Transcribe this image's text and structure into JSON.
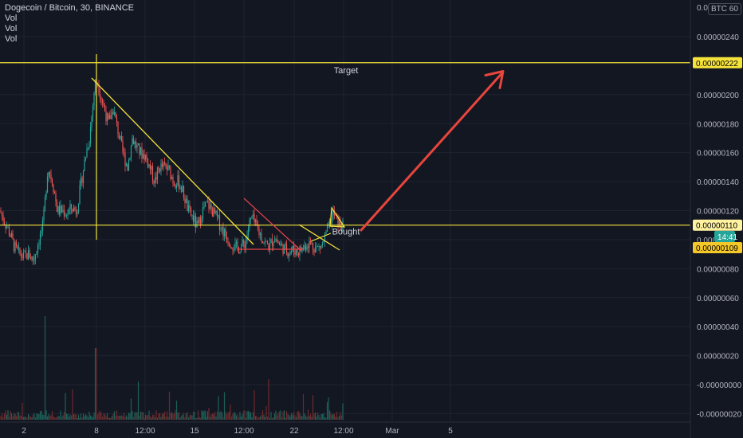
{
  "header": {
    "symbol_title": "Dogecoin / Bitcoin, 30, BINANCE",
    "volume_lines": [
      "Vol",
      "Vol",
      "Vol"
    ],
    "currency_badge": "BTC",
    "currency_badge_prefix": "0.0",
    "currency_badge_suffix": "60"
  },
  "chart_data": {
    "type": "candlestick",
    "title": "Dogecoin / Bitcoin, 30, BINANCE",
    "xlabel": "",
    "ylabel": "",
    "x_tick_labels": [
      "2",
      "8",
      "12:00",
      "15",
      "12:00",
      "22",
      "12:00",
      "Mar",
      "5"
    ],
    "y_tick_values": [
      2.4e-06,
      2e-06,
      1.8e-06,
      1.6e-06,
      1.4e-06,
      1.2e-06,
      1e-06,
      8e-07,
      6e-07,
      4e-07,
      2e-07,
      0.0,
      -2e-07
    ],
    "y_tick_labels": [
      "0.00000240",
      "0.00000200",
      "0.00000180",
      "0.00000160",
      "0.00000140",
      "0.00000120",
      "0.000001",
      "0.00000080",
      "0.00000060",
      "0.00000040",
      "0.00000020",
      "-0.00000000",
      "-0.00000020"
    ],
    "ylim": [
      -2.2e-07,
      2.94e-06
    ],
    "price_path": [
      [
        0,
        1.2e-06
      ],
      [
        6,
        1.12e-06
      ],
      [
        12,
        1.05e-06
      ],
      [
        18,
        9.5e-07
      ],
      [
        24,
        9e-07
      ],
      [
        30,
        8.8e-07
      ],
      [
        36,
        9e-07
      ],
      [
        42,
        8.6e-07
      ],
      [
        48,
        9.8e-07
      ],
      [
        54,
        1.1e-06
      ],
      [
        60,
        1.5e-06
      ],
      [
        66,
        1.4e-06
      ],
      [
        72,
        1.2e-06
      ],
      [
        78,
        1.2e-06
      ],
      [
        84,
        1.18e-06
      ],
      [
        90,
        1.22e-06
      ],
      [
        96,
        1.2e-06
      ],
      [
        102,
        1.4e-06
      ],
      [
        108,
        1.6e-06
      ],
      [
        112,
        1.7e-06
      ],
      [
        116,
        1.9e-06
      ],
      [
        119,
        2.08e-06
      ],
      [
        122,
        2.1e-06
      ],
      [
        126,
        2e-06
      ],
      [
        130,
        1.92e-06
      ],
      [
        136,
        1.8e-06
      ],
      [
        142,
        1.9e-06
      ],
      [
        148,
        1.75e-06
      ],
      [
        154,
        1.6e-06
      ],
      [
        160,
        1.5e-06
      ],
      [
        166,
        1.7e-06
      ],
      [
        170,
        1.65e-06
      ],
      [
        176,
        1.6e-06
      ],
      [
        182,
        1.58e-06
      ],
      [
        188,
        1.5e-06
      ],
      [
        194,
        1.4e-06
      ],
      [
        200,
        1.5e-06
      ],
      [
        206,
        1.5e-06
      ],
      [
        212,
        1.48e-06
      ],
      [
        218,
        1.4e-06
      ],
      [
        224,
        1.4e-06
      ],
      [
        230,
        1.32e-06
      ],
      [
        236,
        1.2e-06
      ],
      [
        242,
        1.15e-06
      ],
      [
        248,
        1.08e-06
      ],
      [
        254,
        1.2e-06
      ],
      [
        260,
        1.25e-06
      ],
      [
        266,
        1.2e-06
      ],
      [
        272,
        1.15e-06
      ],
      [
        278,
        1.08e-06
      ],
      [
        284,
        1.02e-06
      ],
      [
        290,
        9.8e-07
      ],
      [
        296,
        9.4e-07
      ],
      [
        302,
        9.5e-07
      ],
      [
        308,
        9.8e-07
      ],
      [
        312,
        1.1e-06
      ],
      [
        316,
        1.15e-06
      ],
      [
        320,
        1.1e-06
      ],
      [
        326,
        1.04e-06
      ],
      [
        332,
        9.8e-07
      ],
      [
        338,
        9.5e-07
      ],
      [
        344,
        1.02e-06
      ],
      [
        350,
        9.7e-07
      ],
      [
        356,
        9.4e-07
      ],
      [
        362,
        9.2e-07
      ],
      [
        368,
        9.3e-07
      ],
      [
        374,
        9.2e-07
      ],
      [
        380,
        9.4e-07
      ],
      [
        386,
        9.8e-07
      ],
      [
        392,
        9.6e-07
      ],
      [
        398,
        9.4e-07
      ],
      [
        404,
        9.6e-07
      ],
      [
        410,
        1.05e-06
      ],
      [
        414,
        1.12e-06
      ],
      [
        418,
        1.18e-06
      ],
      [
        422,
        1.14e-06
      ],
      [
        426,
        1.1e-06
      ],
      [
        430,
        1.09e-06
      ]
    ],
    "drawings": {
      "target_line": {
        "price": 2.22e-06,
        "label": "Target"
      },
      "bought_line": {
        "price": 1.1e-06,
        "label": "Bought"
      },
      "arrow_to": {
        "price": 2.15e-06
      }
    },
    "price_badges": [
      {
        "text": "0.00000222",
        "bg": "#f5e33b",
        "fg": "#000000"
      },
      {
        "text": "0.00000110",
        "bg": "#fff3a0",
        "fg": "#000000"
      },
      {
        "text": "0.00000109",
        "bg": "#f5c82a",
        "fg": "#000000"
      },
      {
        "text": "14:41",
        "bg": "#26a69a",
        "fg": "#ffffff"
      }
    ],
    "grid": true,
    "colors": {
      "background": "#131722",
      "grid": "#1f2330",
      "up": "#26a69a",
      "down": "#ef5350",
      "drawing_yellow": "#f5e33b",
      "drawing_red": "#e6434a",
      "arrow": "#e8453c",
      "axis_text": "#b2b5be"
    }
  }
}
